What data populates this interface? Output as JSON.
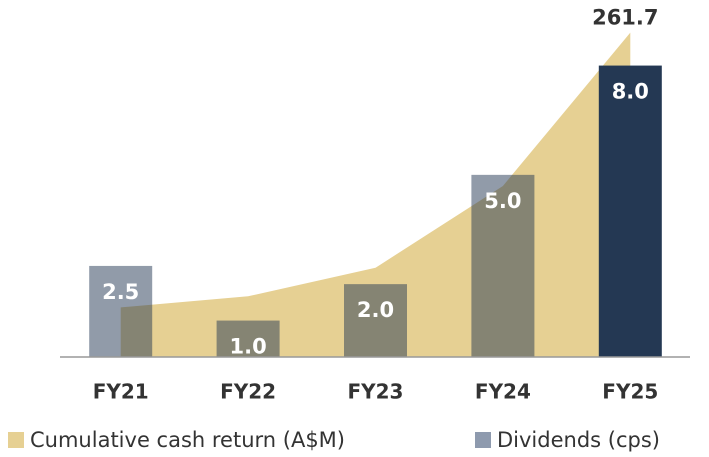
{
  "chart_data": {
    "type": "bar-area",
    "categories": [
      "FY21",
      "FY22",
      "FY23",
      "FY24",
      "FY25"
    ],
    "series": [
      {
        "name": "Cumulative cash return (A$M)",
        "type": "area",
        "axis": "y2",
        "color": "#e6d093",
        "values": [
          40,
          49,
          72,
          138,
          261.7
        ],
        "value_labels": [
          null,
          null,
          null,
          null,
          "261.7"
        ]
      },
      {
        "name": "Dividends (cps)",
        "type": "bar",
        "color": "#8e9aae",
        "colors": [
          "rgba(36,56,83,0.5)",
          "rgba(36,56,83,0.5)",
          "rgba(36,56,83,0.5)",
          "rgba(36,56,83,0.5)",
          "#243853"
        ],
        "values": [
          2.5,
          1,
          2,
          5,
          8
        ],
        "value_labels": [
          "2.5",
          "1.0",
          "2.0",
          "5.0",
          "8.0"
        ]
      }
    ],
    "ylim": [
      0,
      9.8
    ],
    "y2lim": [
      0,
      288
    ]
  }
}
